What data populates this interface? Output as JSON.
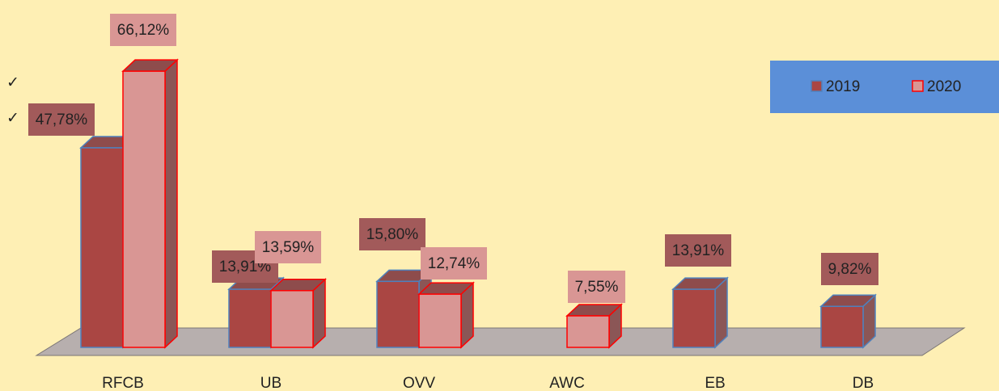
{
  "chart_data": {
    "type": "bar3d",
    "marks": [
      "✓",
      "✓"
    ],
    "categories": [
      "RFCB",
      "UB",
      "OVV",
      "AWC",
      "EB",
      "DB"
    ],
    "series": [
      {
        "name": "2019",
        "color": "#aa4643",
        "values": [
          47.78,
          13.91,
          15.8,
          null,
          13.91,
          9.82
        ],
        "value_labels": [
          "47,78%",
          "13,91%",
          "15,80%",
          null,
          "13,91%",
          "9,82%"
        ]
      },
      {
        "name": "2020",
        "color": "#d99694",
        "values": [
          66.12,
          13.59,
          12.74,
          7.55,
          null,
          null
        ],
        "value_labels": [
          "66,12%",
          "13,59%",
          "12,74%",
          "7,55%",
          null,
          null
        ]
      }
    ],
    "legend": "top-right"
  }
}
